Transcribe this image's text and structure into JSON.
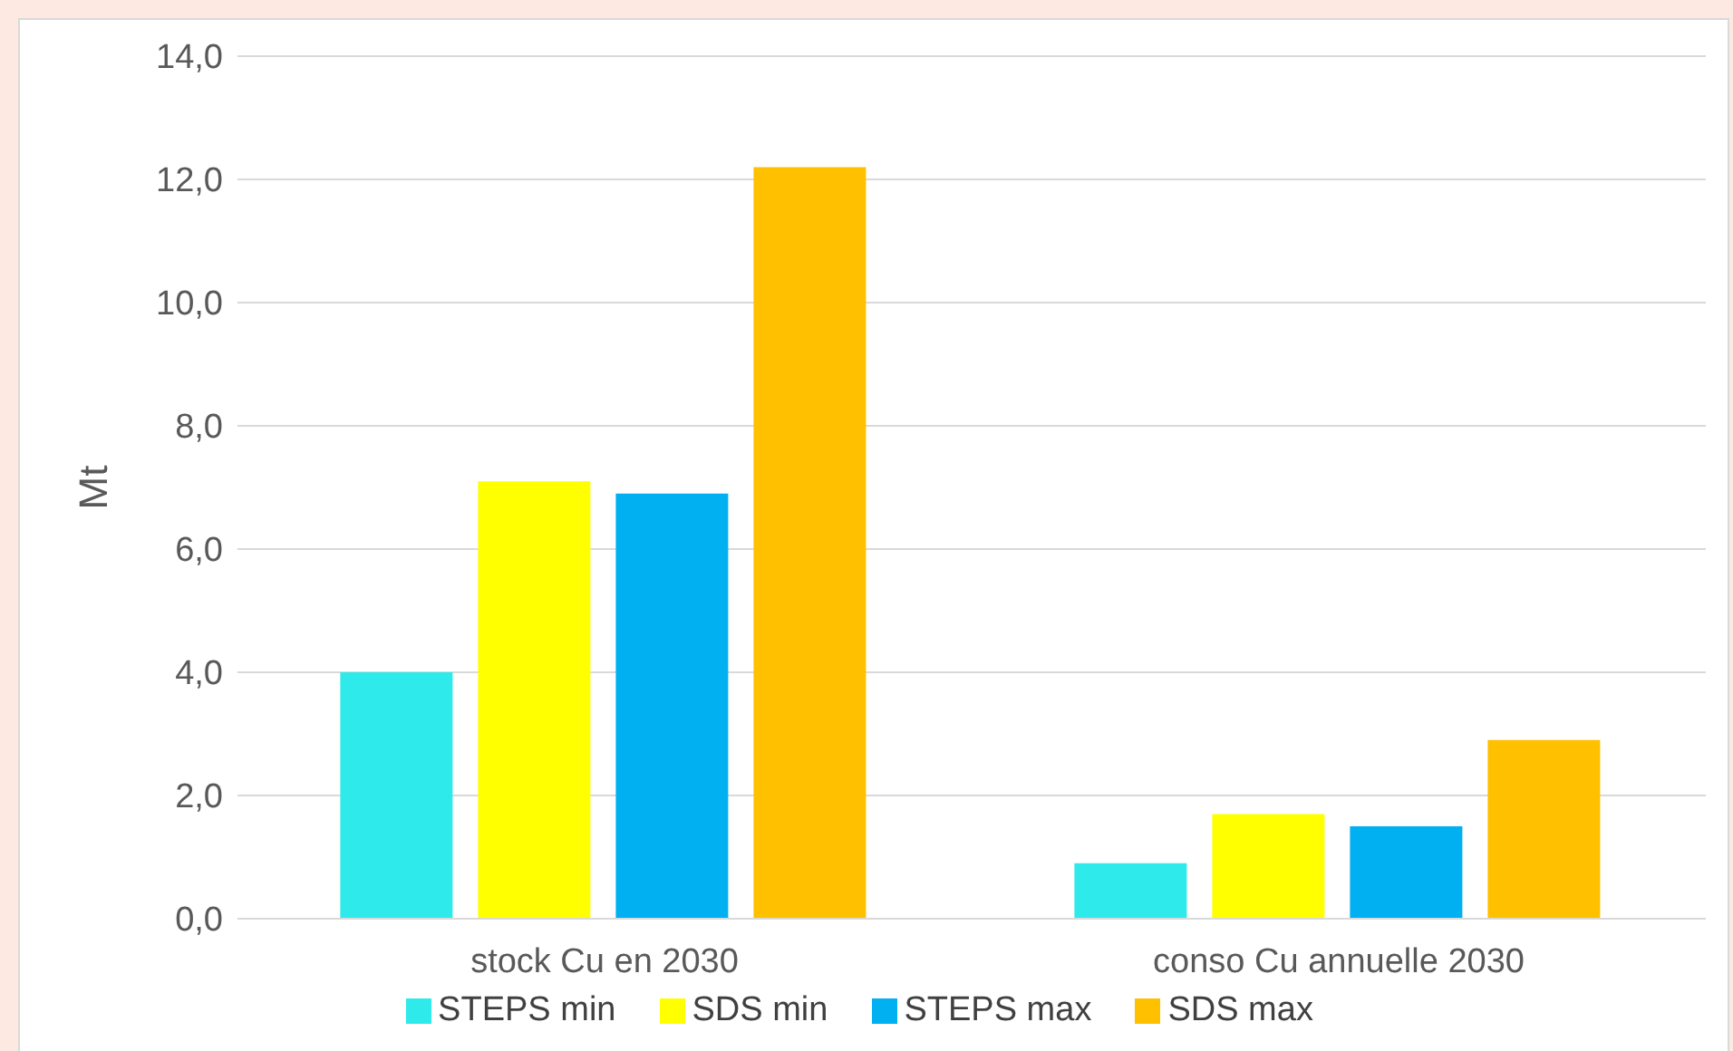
{
  "chart_data": {
    "type": "bar",
    "ylabel": "Mt",
    "categories": [
      "stock Cu en 2030",
      "conso Cu annuelle 2030"
    ],
    "series": [
      {
        "name": "STEPS min",
        "color": "#2eeaea",
        "values": [
          4.0,
          0.9
        ]
      },
      {
        "name": "SDS min",
        "color": "#ffff00",
        "values": [
          7.1,
          1.7
        ]
      },
      {
        "name": "STEPS max",
        "color": "#00b0f0",
        "values": [
          6.9,
          1.5
        ]
      },
      {
        "name": "SDS max",
        "color": "#ffc000",
        "values": [
          12.2,
          2.9
        ]
      }
    ],
    "ylim": [
      0,
      14
    ],
    "yticks": [
      {
        "value": 0,
        "label": "0,0"
      },
      {
        "value": 2,
        "label": "2,0"
      },
      {
        "value": 4,
        "label": "4,0"
      },
      {
        "value": 6,
        "label": "6,0"
      },
      {
        "value": 8,
        "label": "8,0"
      },
      {
        "value": 10,
        "label": "10,0"
      },
      {
        "value": 12,
        "label": "12,0"
      },
      {
        "value": 14,
        "label": "14,0"
      }
    ],
    "grid": "y",
    "legend": "bottom"
  }
}
